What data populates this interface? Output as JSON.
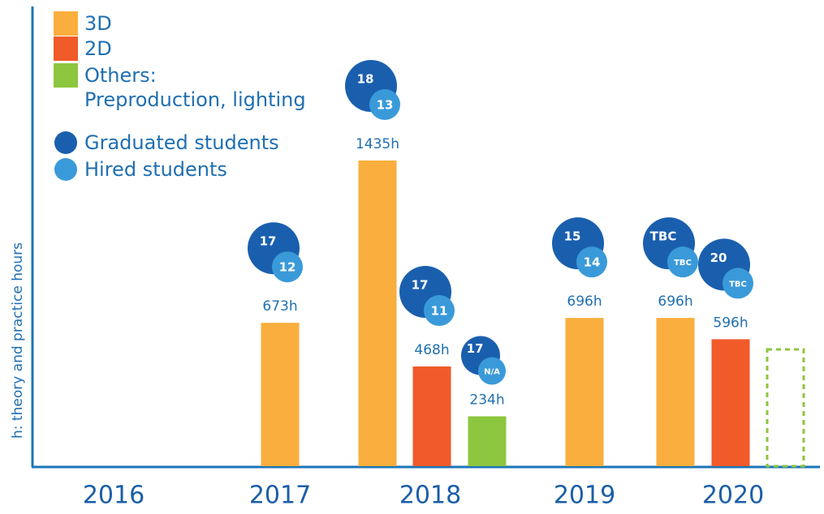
{
  "chart_data": {
    "type": "bar",
    "y_label": "h: theory and practice hours",
    "categories": [
      "2016",
      "2017",
      "2018",
      "2019",
      "2020"
    ],
    "series": [
      {
        "name": "3D",
        "color": "#f9ae3d",
        "values": [
          null,
          673,
          1435,
          696,
          696
        ],
        "value_labels": [
          null,
          "673h",
          "1435h",
          "696h",
          "696h"
        ],
        "graduated": [
          null,
          17,
          18,
          15,
          "TBC"
        ],
        "hired": [
          null,
          12,
          13,
          14,
          "TBC"
        ]
      },
      {
        "name": "2D",
        "color": "#f15a29",
        "values": [
          null,
          null,
          468,
          null,
          596
        ],
        "value_labels": [
          null,
          null,
          "468h",
          null,
          "596h"
        ],
        "graduated": [
          null,
          null,
          17,
          null,
          20
        ],
        "hired": [
          null,
          null,
          11,
          null,
          "TBC"
        ]
      },
      {
        "name": "Others:\nPreproduction, lighting",
        "color": "#8dc63f",
        "values": [
          null,
          null,
          234,
          null,
          null
        ],
        "value_labels": [
          null,
          null,
          "234h",
          null,
          null
        ],
        "graduated": [
          null,
          null,
          17,
          null,
          null
        ],
        "hired": [
          null,
          null,
          "N/A",
          null,
          null
        ]
      }
    ],
    "bubble_legend": [
      {
        "name": "Graduated students",
        "color": "#1a5fae"
      },
      {
        "name": "Hired students",
        "color": "#3a9ad9"
      }
    ]
  }
}
